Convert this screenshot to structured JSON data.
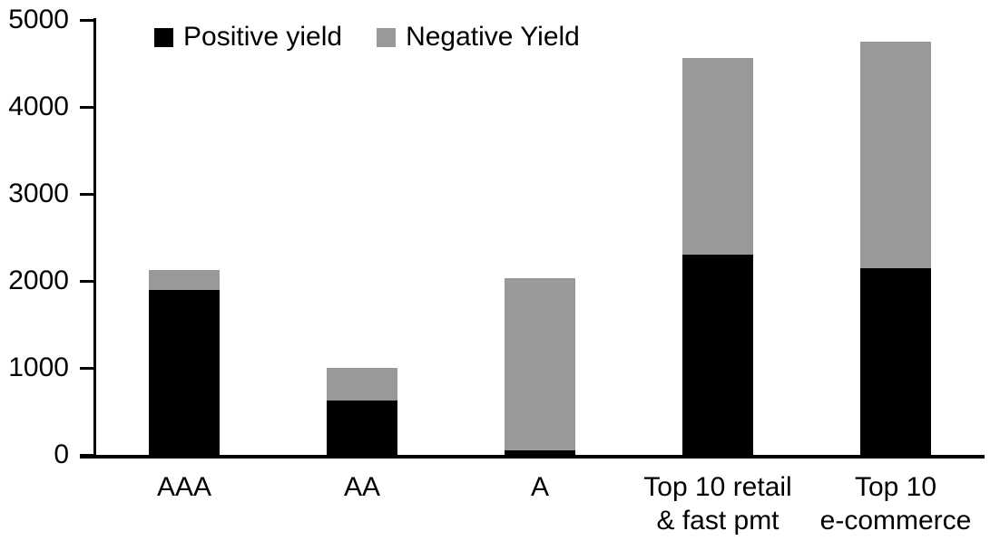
{
  "chart_data": {
    "type": "bar",
    "stacked": true,
    "title": "",
    "xlabel": "",
    "ylabel": "",
    "categories": [
      "AAA",
      "AA",
      "A",
      "Top 10 retail\n& fast pmt",
      "Top 10\ne-commerce"
    ],
    "series": [
      {
        "name": "Positive yield",
        "color": "#000000",
        "values": [
          1900,
          620,
          50,
          2300,
          2150
        ]
      },
      {
        "name": "Negative Yield",
        "color": "#999999",
        "values": [
          220,
          380,
          1980,
          2260,
          2600
        ]
      }
    ],
    "totals": [
      2120,
      1000,
      2030,
      4560,
      4750
    ],
    "ylim": [
      0,
      5000
    ],
    "ytick_interval": 1000,
    "ytick_labels": [
      "0",
      "1000",
      "2000",
      "3000",
      "4000",
      "5000"
    ],
    "legend_position": "top",
    "grid": false,
    "axis_color": "#000000",
    "background_color": "#ffffff"
  }
}
